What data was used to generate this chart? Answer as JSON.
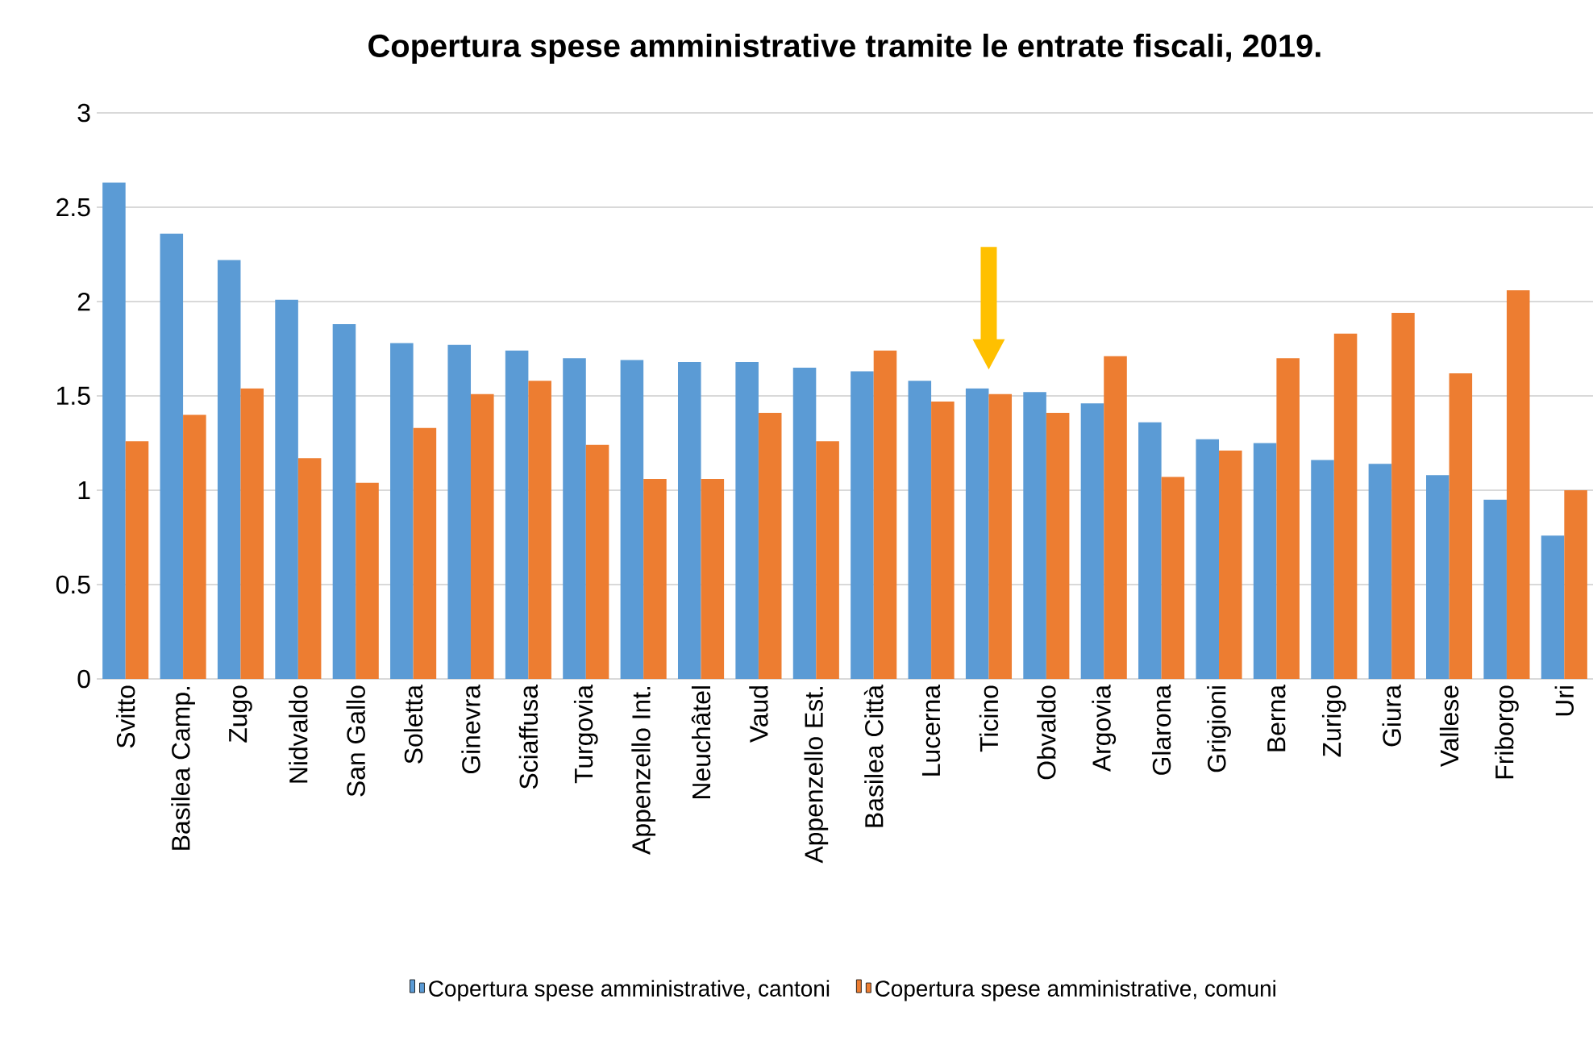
{
  "chart_data": {
    "type": "bar",
    "title": "Copertura spese amministrative tramite le entrate fiscali, 2019.",
    "categories": [
      "Svitto",
      "Basilea Camp.",
      "Zugo",
      "Nidvaldo",
      "San Gallo",
      "Soletta",
      "Ginevra",
      "Sciaffusa",
      "Turgovia",
      "Appenzello Int.",
      "Neuchâtel",
      "Vaud",
      "Appenzello Est.",
      "Basilea Città",
      "Lucerna",
      "Ticino",
      "Obvaldo",
      "Argovia",
      "Glarona",
      "Grigioni",
      "Berna",
      "Zurigo",
      "Giura",
      "Vallese",
      "Friborgo",
      "Uri"
    ],
    "series": [
      {
        "name": "Copertura spese amministrative, cantoni",
        "color": "#5b9bd5",
        "values": [
          2.63,
          2.36,
          2.22,
          2.01,
          1.88,
          1.78,
          1.77,
          1.74,
          1.7,
          1.69,
          1.68,
          1.68,
          1.65,
          1.63,
          1.58,
          1.54,
          1.52,
          1.46,
          1.36,
          1.27,
          1.25,
          1.16,
          1.14,
          1.08,
          0.95,
          0.76
        ]
      },
      {
        "name": "Copertura spese amministrative, comuni",
        "color": "#ed7d31",
        "values": [
          1.26,
          1.4,
          1.54,
          1.17,
          1.04,
          1.33,
          1.51,
          1.58,
          1.24,
          1.06,
          1.06,
          1.41,
          1.26,
          1.74,
          1.47,
          1.51,
          1.41,
          1.71,
          1.07,
          1.21,
          1.7,
          1.83,
          1.94,
          1.62,
          2.06,
          1.0
        ]
      }
    ],
    "ylim": [
      0,
      3
    ],
    "yticks": [
      0,
      0.5,
      1,
      1.5,
      2,
      2.5,
      3
    ],
    "grid": "y",
    "legend": "bottom"
  }
}
